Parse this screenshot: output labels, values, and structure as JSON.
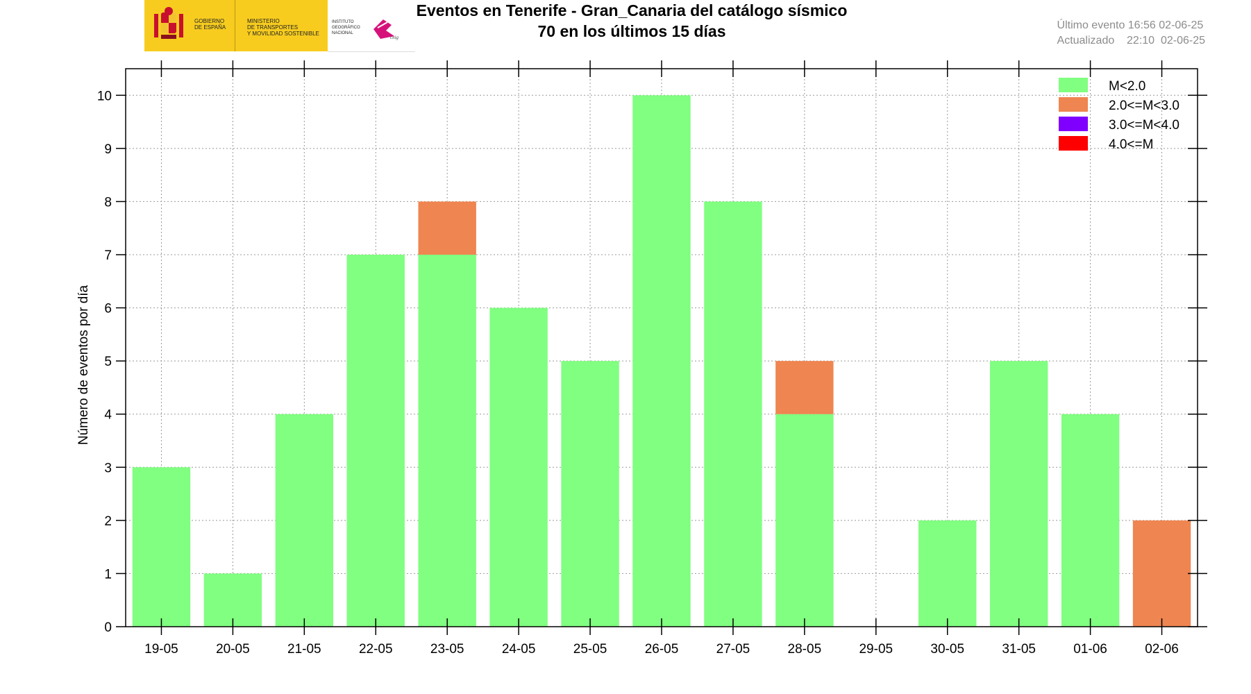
{
  "header": {
    "title_line1": "Eventos en Tenerife - Gran_Canaria del catálogo sísmico",
    "title_line2": "70 en los últimos 15 días",
    "last_event": "Último evento 16:56 02-06-25",
    "updated": "Actualizado    22:10  02-06-25"
  },
  "logos": {
    "gov_text": [
      "GOBIERNO",
      "DE ESPAÑA"
    ],
    "ministry_text": [
      "MINISTERIO",
      "DE TRANSPORTES",
      "Y MOVILIDAD SOSTENIBLE"
    ],
    "ign_text": [
      "INSTITUTO",
      "GEOGRÁFICO",
      "NACIONAL"
    ],
    "ign_mark": "cnig"
  },
  "chart_data": {
    "type": "bar",
    "stacked": true,
    "title": "",
    "xlabel": "",
    "ylabel": "Número de eventos por día",
    "ylim": [
      0,
      10.5
    ],
    "yticks": [
      0,
      1,
      2,
      3,
      4,
      5,
      6,
      7,
      8,
      9,
      10
    ],
    "grid": true,
    "legend_position": "top-right",
    "categories": [
      "19-05",
      "20-05",
      "21-05",
      "22-05",
      "23-05",
      "24-05",
      "25-05",
      "26-05",
      "27-05",
      "28-05",
      "29-05",
      "30-05",
      "31-05",
      "01-06",
      "02-06"
    ],
    "series": [
      {
        "name": "M<2.0",
        "color": "#80ff80",
        "values": [
          3,
          1,
          4,
          7,
          7,
          6,
          5,
          10,
          8,
          4,
          0,
          2,
          5,
          4,
          0
        ]
      },
      {
        "name": "2.0<=M<3.0",
        "color": "#ef8550",
        "values": [
          0,
          0,
          0,
          0,
          1,
          0,
          0,
          0,
          0,
          1,
          0,
          0,
          0,
          0,
          2
        ]
      },
      {
        "name": "3.0<=M<4.0",
        "color": "#8000ff",
        "values": [
          0,
          0,
          0,
          0,
          0,
          0,
          0,
          0,
          0,
          0,
          0,
          0,
          0,
          0,
          0
        ]
      },
      {
        "name": "4.0<=M",
        "color": "#ff0000",
        "values": [
          0,
          0,
          0,
          0,
          0,
          0,
          0,
          0,
          0,
          0,
          0,
          0,
          0,
          0,
          0
        ]
      }
    ]
  }
}
